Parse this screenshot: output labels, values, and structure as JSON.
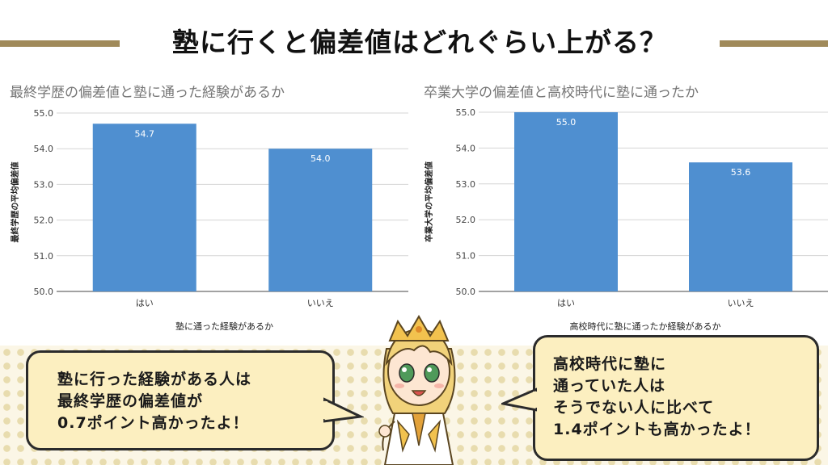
{
  "title": "塾に行くと偏差値はどれぐらい上がる？",
  "chart_data": [
    {
      "type": "bar",
      "title": "最終学歴の偏差値と塾に通った経験があるか",
      "categories": [
        "はい",
        "いいえ"
      ],
      "values": [
        54.7,
        54.0
      ],
      "value_labels": [
        "54.7",
        "54.0"
      ],
      "xlabel": "塾に通った経験があるか",
      "ylabel": "最終学歴の平均偏差値",
      "ylim": [
        50.0,
        55.0
      ],
      "yticks": [
        "50.0",
        "51.0",
        "52.0",
        "53.0",
        "54.0",
        "55.0"
      ],
      "grid": true,
      "bar_color": "#4f8fd0"
    },
    {
      "type": "bar",
      "title": "卒業大学の偏差値と高校時代に塾に通ったか",
      "categories": [
        "はい",
        "いいえ"
      ],
      "values": [
        55.0,
        53.6
      ],
      "value_labels": [
        "55.0",
        "53.6"
      ],
      "xlabel": "高校時代に塾に通ったか経験があるか",
      "ylabel": "卒業大学の平均偏差値",
      "ylim": [
        50.0,
        55.0
      ],
      "yticks": [
        "50.0",
        "51.0",
        "52.0",
        "53.0",
        "54.0",
        "55.0"
      ],
      "grid": true,
      "bar_color": "#4f8fd0"
    }
  ],
  "bubbles": {
    "left": [
      "塾に行った経験がある人は",
      "最終学歴の偏差値が",
      "0.7ポイント高かったよ！"
    ],
    "right": [
      "高校時代に塾に",
      "通っていた人は",
      "そうでない人に比べて",
      "1.4ポイントも高かったよ！"
    ]
  },
  "colors": {
    "accent": "#a08a5a",
    "bubble": "#fcefc0",
    "dots": "#e8dcae"
  }
}
